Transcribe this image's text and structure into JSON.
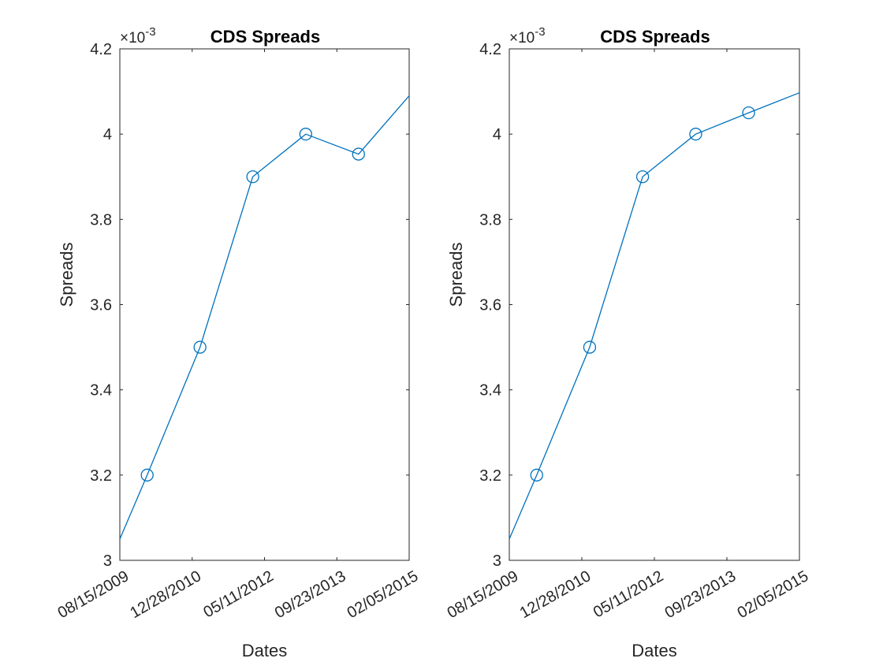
{
  "figure": {
    "background": "#ffffff",
    "axis_color": "#262626",
    "line_color": "#0072BD"
  },
  "chart_data": [
    {
      "type": "line",
      "title": "CDS Spreads",
      "xlabel": "Dates",
      "ylabel": "Spreads",
      "y_exponent_label": "×10",
      "y_exponent_power": "-3",
      "x_ticks": [
        "08/15/2009",
        "12/28/2010",
        "05/11/2012",
        "09/23/2013",
        "02/05/2015"
      ],
      "xlim": [
        "2009-08-15",
        "2015-02-05"
      ],
      "ylim": [
        3,
        4.2
      ],
      "y_ticks": [
        3,
        3.2,
        3.4,
        3.6,
        3.8,
        4,
        4.2
      ],
      "y_tick_labels": [
        "3",
        "3.2",
        "3.4",
        "3.6",
        "3.8",
        "4",
        "4.2"
      ],
      "grid": false,
      "series": [
        {
          "x": [
            "2009-08-15",
            "2010-02-20",
            "2011-02-20",
            "2012-02-20",
            "2013-02-20",
            "2014-02-20",
            "2015-02-05"
          ],
          "y": [
            3.05,
            3.2,
            3.5,
            3.9,
            4.0,
            3.953,
            4.09
          ],
          "markers": [
            false,
            true,
            true,
            true,
            true,
            true,
            false
          ],
          "marker": "circle"
        }
      ]
    },
    {
      "type": "line",
      "title": "CDS Spreads",
      "xlabel": "Dates",
      "ylabel": "Spreads",
      "y_exponent_label": "×10",
      "y_exponent_power": "-3",
      "x_ticks": [
        "08/15/2009",
        "12/28/2010",
        "05/11/2012",
        "09/23/2013",
        "02/05/2015"
      ],
      "xlim": [
        "2009-08-15",
        "2015-02-05"
      ],
      "ylim": [
        3,
        4.2
      ],
      "y_ticks": [
        3,
        3.2,
        3.4,
        3.6,
        3.8,
        4,
        4.2
      ],
      "y_tick_labels": [
        "3",
        "3.2",
        "3.4",
        "3.6",
        "3.8",
        "4",
        "4.2"
      ],
      "grid": false,
      "series": [
        {
          "x": [
            "2009-08-15",
            "2010-02-20",
            "2011-02-20",
            "2012-02-20",
            "2013-02-20",
            "2014-02-20",
            "2015-02-05"
          ],
          "y": [
            3.05,
            3.2,
            3.5,
            3.9,
            4.0,
            4.05,
            4.097
          ],
          "markers": [
            false,
            true,
            true,
            true,
            true,
            true,
            false
          ],
          "marker": "circle"
        }
      ]
    }
  ]
}
